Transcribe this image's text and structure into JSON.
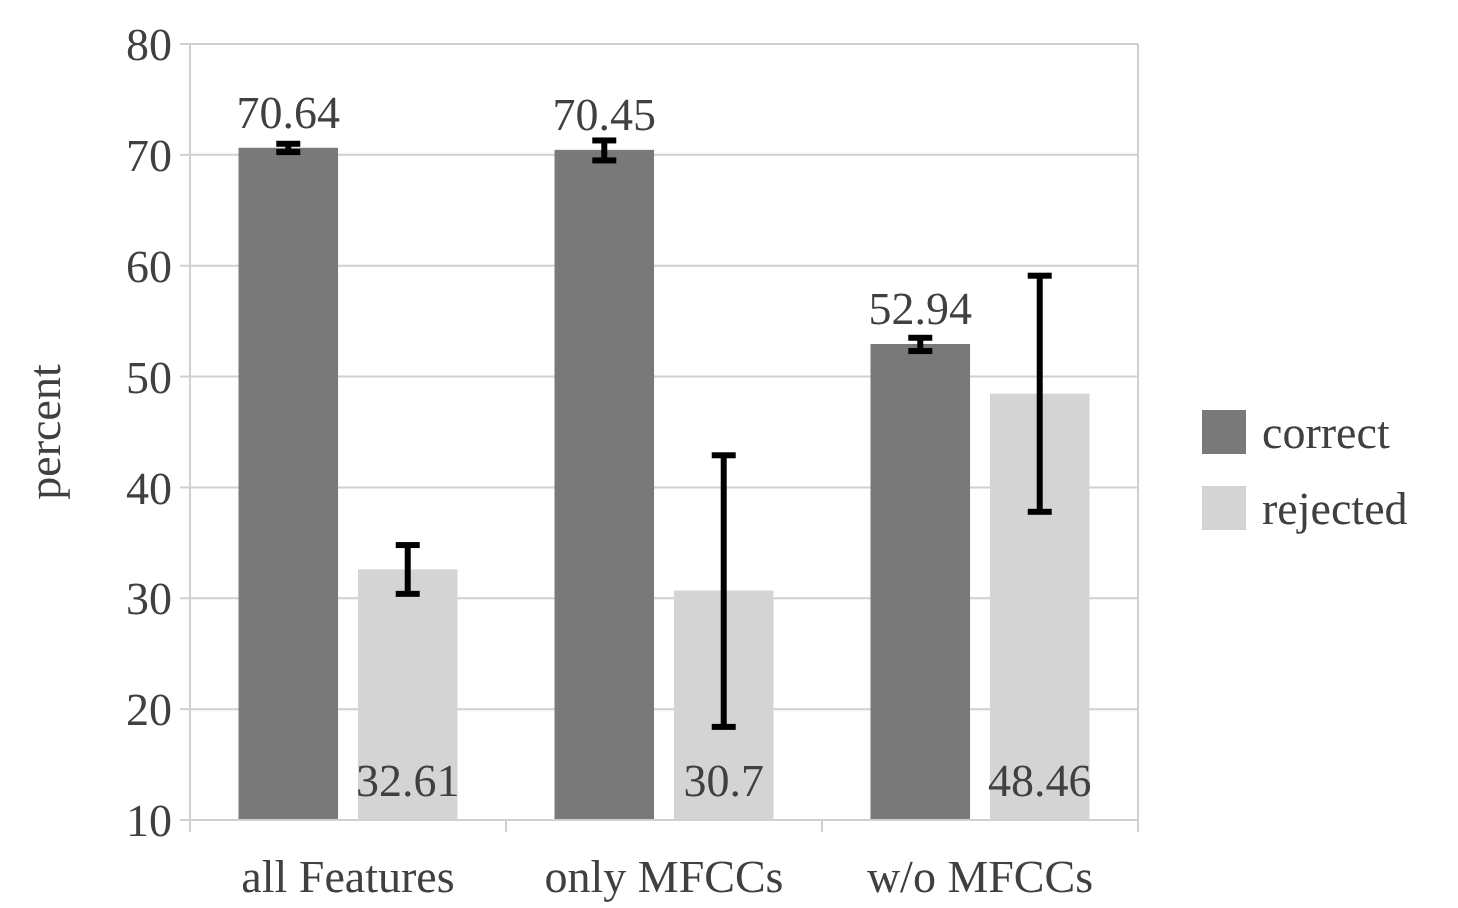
{
  "chart_data": {
    "type": "bar",
    "ylabel": "percent",
    "categories": [
      "all Features",
      "only MFCCs",
      "w/o MFCCs"
    ],
    "series": [
      {
        "name": "correct",
        "color": "#797979",
        "values": [
          70.64,
          70.45,
          52.94
        ],
        "errors": [
          [
            70.25,
            71.0
          ],
          [
            69.5,
            71.3
          ],
          [
            52.3,
            53.5
          ]
        ]
      },
      {
        "name": "rejected",
        "color": "#d4d4d4",
        "values": [
          32.61,
          30.7,
          48.46
        ],
        "errors": [
          [
            30.4,
            34.8
          ],
          [
            18.4,
            42.9
          ],
          [
            37.8,
            59.1
          ]
        ]
      }
    ],
    "ylim": [
      10,
      80
    ],
    "yticks": [
      10,
      20,
      30,
      40,
      50,
      60,
      70,
      80
    ],
    "grid": "y",
    "legend": "right",
    "data_labels": true
  }
}
